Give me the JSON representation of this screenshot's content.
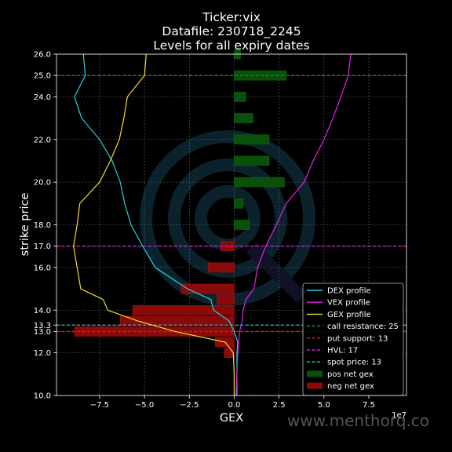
{
  "chart_data": {
    "type": "bar",
    "title": [
      "Ticker:vix",
      "Datafile: 230718_2245",
      "Levels for all expiry dates"
    ],
    "xlabel": "GEX",
    "ylabel": "strike price",
    "x_offset_label": "1e7",
    "xlim": [
      -9.9,
      9.6
    ],
    "ylim": [
      10,
      26
    ],
    "x_scale": 10000000,
    "x_ticks": [
      -7.5,
      -5.0,
      -2.5,
      0.0,
      2.5,
      5.0,
      7.5
    ],
    "x_tick_labels": [
      "−7.5",
      "−5.0",
      "−2.5",
      "0.0",
      "2.5",
      "5.0",
      "7.5"
    ],
    "y_ticks": [
      10,
      12,
      13,
      13.3,
      14,
      16,
      17,
      18,
      20,
      22,
      24,
      25,
      26
    ],
    "y_tick_labels": [
      "10.0",
      "12.0",
      "13.0",
      "13.3",
      "14.0",
      "16.0",
      "17.0",
      "18.0",
      "20.0",
      "22.0",
      "24.0",
      "25.0",
      "26.0"
    ],
    "grid": true,
    "legend_position": "lower-right",
    "bar_half_height": 0.22,
    "colors": {
      "dex": "#22d4e0",
      "vex": "#e81ee8",
      "gex": "#f0e020",
      "call_resistance": "#1f8a1f",
      "put_support": "#cc2020",
      "hvl": "#d020d0",
      "spot": "#20c8d8",
      "pos_gex": "#0a4f0a",
      "neg_gex": "#8a0a0a"
    },
    "pos_net_gex": [
      {
        "strike": 26.0,
        "value": 0.35
      },
      {
        "strike": 25.0,
        "value": 2.9
      },
      {
        "strike": 24.0,
        "value": 0.65
      },
      {
        "strike": 23.0,
        "value": 1.05
      },
      {
        "strike": 22.0,
        "value": 1.95
      },
      {
        "strike": 21.0,
        "value": 1.95
      },
      {
        "strike": 20.0,
        "value": 2.8
      },
      {
        "strike": 19.0,
        "value": 0.5
      },
      {
        "strike": 18.0,
        "value": 0.85
      }
    ],
    "neg_net_gex": [
      {
        "strike": 17.0,
        "value": -0.75
      },
      {
        "strike": 16.0,
        "value": -1.45
      },
      {
        "strike": 15.0,
        "value": -2.95
      },
      {
        "strike": 14.5,
        "value": -0.95
      },
      {
        "strike": 14.0,
        "value": -5.65
      },
      {
        "strike": 13.5,
        "value": -6.35
      },
      {
        "strike": 13.0,
        "value": -8.9
      },
      {
        "strike": 12.5,
        "value": -1.05
      },
      {
        "strike": 12.0,
        "value": -0.55
      }
    ],
    "dex_profile": {
      "y": [
        10,
        11,
        12,
        12.5,
        13,
        13.5,
        14,
        14.5,
        15,
        16,
        17,
        18,
        19,
        20,
        21,
        22,
        23,
        24,
        25,
        26
      ],
      "x": [
        0.15,
        0.15,
        0.15,
        0.2,
        0.0,
        -0.3,
        -1.15,
        -1.3,
        -2.6,
        -4.4,
        -5.1,
        -5.75,
        -6.1,
        -6.35,
        -6.8,
        -7.5,
        -8.5,
        -8.9,
        -8.3,
        -8.4
      ]
    },
    "vex_profile": {
      "y": [
        10,
        11,
        12,
        12.5,
        13,
        13.5,
        14,
        14.5,
        15,
        16,
        17,
        18,
        19,
        20,
        21,
        22,
        23,
        24,
        25,
        26
      ],
      "x": [
        0.1,
        0.15,
        0.2,
        0.25,
        0.3,
        0.45,
        0.5,
        0.65,
        1.1,
        1.3,
        1.75,
        2.35,
        2.9,
        3.9,
        4.4,
        5.0,
        5.5,
        5.95,
        6.35,
        6.5
      ]
    },
    "gex_profile": {
      "y": [
        10,
        11,
        12,
        12.5,
        13,
        13.5,
        14,
        14.5,
        15,
        16,
        17,
        18,
        19,
        20,
        21,
        22,
        23,
        24,
        25,
        26
      ],
      "x": [
        0.0,
        0.0,
        -0.05,
        -0.5,
        -3.3,
        -5.4,
        -7.05,
        -7.3,
        -8.55,
        -8.75,
        -8.95,
        -8.75,
        -8.6,
        -7.5,
        -6.9,
        -6.4,
        -6.15,
        -5.95,
        -5.0,
        -4.9
      ]
    },
    "levels": [
      {
        "key": "call_resistance",
        "name": "call resistance: 25",
        "y": 25,
        "color": "#1f8a1f"
      },
      {
        "key": "put_support",
        "name": "put support: 13",
        "y": 13,
        "color": "#cc2020"
      },
      {
        "key": "hvl",
        "name": "HVL: 17",
        "y": 17,
        "color": "#d020d0"
      },
      {
        "key": "spot",
        "name": "spot price: 13",
        "y": 13.3,
        "color": "#20c8d8"
      }
    ],
    "legend": [
      {
        "label": "DEX profile",
        "kind": "line",
        "color": "#22d4e0"
      },
      {
        "label": "VEX profile",
        "kind": "line",
        "color": "#e81ee8"
      },
      {
        "label": "GEX profile",
        "kind": "line",
        "color": "#f0e020"
      },
      {
        "label": "call resistance: 25",
        "kind": "dash",
        "color": "#1f8a1f"
      },
      {
        "label": "put support: 13",
        "kind": "dash",
        "color": "#cc2020"
      },
      {
        "label": "HVL: 17",
        "kind": "dash",
        "color": "#d020d0"
      },
      {
        "label": "spot price: 13",
        "kind": "dash",
        "color": "#20c8d8"
      },
      {
        "label": "pos net gex",
        "kind": "patch",
        "color": "#0a4f0a"
      },
      {
        "label": "neg net gex",
        "kind": "patch",
        "color": "#8a0a0a"
      }
    ]
  },
  "watermark": "www.menthorq.co"
}
